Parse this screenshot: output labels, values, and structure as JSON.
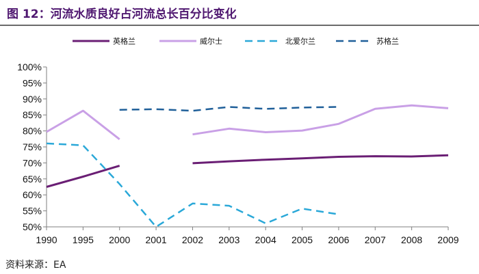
{
  "title": "图 12：河流水质良好占河流总长百分比变化",
  "source": "资料来源：EA",
  "chart_data": {
    "type": "line",
    "title": "图 12：河流水质良好占河流总长百分比变化",
    "xlabel": "",
    "ylabel": "",
    "categories": [
      "1990",
      "1995",
      "2000",
      "2001",
      "2002",
      "2003",
      "2004",
      "2005",
      "2006",
      "2007",
      "2008",
      "2009"
    ],
    "ylim": [
      50,
      100
    ],
    "yticks": [
      "50%",
      "55%",
      "60%",
      "65%",
      "70%",
      "75%",
      "80%",
      "85%",
      "90%",
      "95%",
      "100%"
    ],
    "ytick_values": [
      50,
      55,
      60,
      65,
      70,
      75,
      80,
      85,
      90,
      95,
      100
    ],
    "grid": false,
    "legend_position": "top",
    "series": [
      {
        "name": "英格兰",
        "color": "#6a1e74",
        "dash": "solid",
        "values": [
          62.5,
          65.7,
          69.1,
          null,
          69.9,
          70.5,
          71.0,
          71.4,
          71.9,
          72.1,
          72.0,
          72.4
        ]
      },
      {
        "name": "威尔士",
        "color": "#c9a0e6",
        "dash": "solid",
        "values": [
          79.7,
          86.3,
          77.4,
          null,
          78.9,
          80.7,
          79.6,
          80.1,
          82.2,
          86.9,
          88.0,
          87.1
        ]
      },
      {
        "name": "北爱尔兰",
        "color": "#2aa8d8",
        "dash": "dashed",
        "values": [
          76.1,
          75.5,
          63.4,
          50.0,
          57.3,
          56.6,
          51.1,
          55.7,
          53.9,
          null,
          null,
          null
        ]
      },
      {
        "name": "苏格兰",
        "color": "#1f5f99",
        "dash": "dashed",
        "values": [
          null,
          null,
          86.6,
          86.8,
          86.3,
          87.5,
          86.9,
          87.3,
          87.5,
          null,
          null,
          null
        ]
      }
    ]
  }
}
